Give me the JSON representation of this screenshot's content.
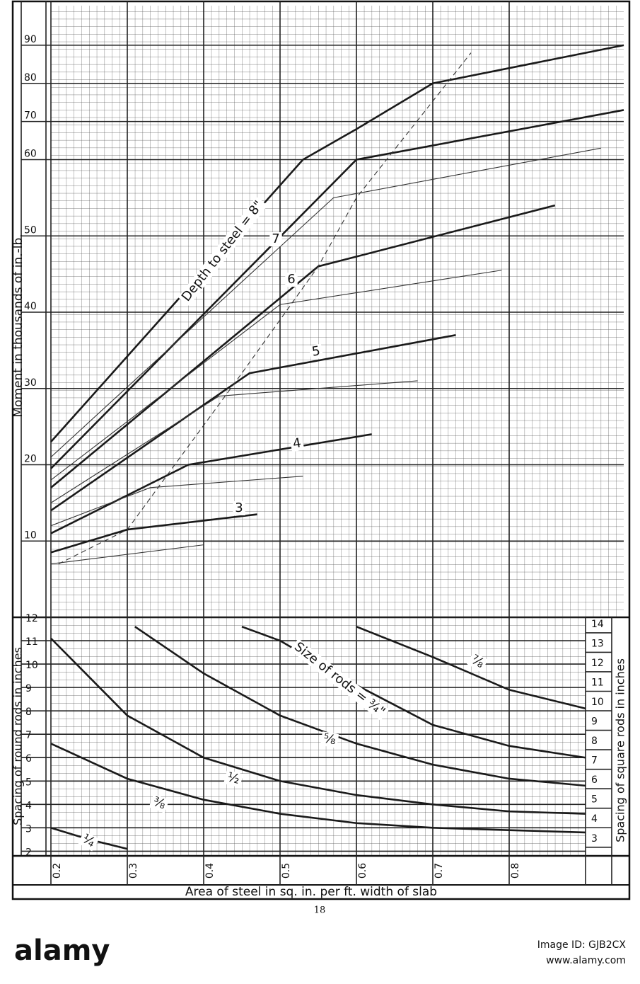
{
  "chart_data": [
    {
      "type": "line",
      "y_label": "Moment in thousands of in.-lb.",
      "xlim": [
        0.2,
        0.95
      ],
      "ylim": [
        0,
        100
      ],
      "scale_break": {
        "value": 60,
        "upper_ratio": 0.5
      },
      "yticks": [
        10,
        20,
        30,
        40,
        50,
        60,
        70,
        80,
        90
      ],
      "grid": true,
      "series": [
        {
          "name": "3",
          "color": "#1a1a1a",
          "line_style": "bold",
          "x": [
            0.2,
            0.3,
            0.47
          ],
          "values": [
            8.5,
            11.5,
            13.5
          ]
        },
        {
          "name": "4",
          "color": "#1a1a1a",
          "line_style": "bold",
          "x": [
            0.2,
            0.38,
            0.62
          ],
          "values": [
            11,
            20,
            24
          ]
        },
        {
          "name": "5",
          "color": "#1a1a1a",
          "line_style": "bold",
          "x": [
            0.2,
            0.46,
            0.73
          ],
          "values": [
            14,
            32,
            37
          ]
        },
        {
          "name": "6",
          "color": "#1a1a1a",
          "line_style": "bold",
          "x": [
            0.2,
            0.55,
            0.86
          ],
          "values": [
            17,
            46,
            54
          ]
        },
        {
          "name": "7",
          "color": "#1a1a1a",
          "line_style": "bold",
          "x": [
            0.2,
            0.6,
            0.95
          ],
          "values": [
            19.5,
            60,
            73
          ]
        },
        {
          "name": "Depth to steel = 8\"",
          "color": "#1a1a1a",
          "line_style": "bold",
          "x": [
            0.2,
            0.53,
            0.6,
            0.7,
            0.95
          ],
          "values": [
            23,
            60,
            68,
            80,
            90
          ]
        },
        {
          "color": "#333",
          "line_style": "thin",
          "x": [
            0.2,
            0.4
          ],
          "values": [
            7,
            9.5
          ]
        },
        {
          "color": "#333",
          "line_style": "thin",
          "x": [
            0.2,
            0.33,
            0.53
          ],
          "values": [
            12,
            17,
            18.5
          ]
        },
        {
          "color": "#333",
          "line_style": "thin",
          "x": [
            0.2,
            0.42,
            0.68
          ],
          "values": [
            15,
            29,
            31
          ]
        },
        {
          "color": "#333",
          "line_style": "thin",
          "x": [
            0.2,
            0.5,
            0.79
          ],
          "values": [
            18,
            41,
            45.5
          ]
        },
        {
          "color": "#333",
          "line_style": "thin",
          "x": [
            0.2,
            0.57,
            0.92
          ],
          "values": [
            21,
            55,
            63
          ]
        },
        {
          "color": "#333",
          "line_style": "dashed",
          "x": [
            0.21,
            0.3,
            0.45,
            0.55,
            0.6,
            0.75
          ],
          "values": [
            7,
            11.5,
            32,
            46,
            55,
            88
          ]
        }
      ]
    },
    {
      "type": "line",
      "x_label": "Area of steel in sq. in. per ft. width of slab",
      "y_label": "Spacing of round rods in inches",
      "y2_label": "Spacing of square rods in inches",
      "xlim": [
        0.2,
        0.95
      ],
      "xticks": [
        0.2,
        0.3,
        0.4,
        0.5,
        0.6,
        0.7,
        0.8
      ],
      "ylim": [
        1.8,
        12
      ],
      "yticks": [
        2,
        3,
        4,
        5,
        6,
        7,
        8,
        9,
        10,
        11,
        12
      ],
      "y2lim": [
        2.12,
        14.36
      ],
      "y2ticks": [
        3,
        4,
        5,
        6,
        7,
        8,
        9,
        10,
        11,
        12,
        13,
        14
      ],
      "grid": true,
      "series": [
        {
          "name": "¼",
          "color": "#1a1a1a",
          "line_style": "bold",
          "x": [
            0.2,
            0.25,
            0.3
          ],
          "values": [
            3,
            2.5,
            2.1
          ]
        },
        {
          "name": "⅜",
          "color": "#1a1a1a",
          "line_style": "bold",
          "x": [
            0.2,
            0.3,
            0.4,
            0.5,
            0.6,
            0.7,
            0.8,
            0.9
          ],
          "values": [
            6.6,
            5.1,
            4.2,
            3.6,
            3.2,
            3.0,
            2.9,
            2.8
          ]
        },
        {
          "name": "½",
          "color": "#1a1a1a",
          "line_style": "bold",
          "x": [
            0.2,
            0.3,
            0.4,
            0.5,
            0.6,
            0.7,
            0.8,
            0.9
          ],
          "values": [
            11.1,
            7.8,
            6,
            5,
            4.4,
            4,
            3.7,
            3.6
          ]
        },
        {
          "name": "⅝",
          "color": "#1a1a1a",
          "line_style": "bold",
          "x": [
            0.31,
            0.4,
            0.5,
            0.6,
            0.7,
            0.8,
            0.9
          ],
          "values": [
            11.6,
            9.6,
            7.8,
            6.6,
            5.7,
            5.1,
            4.8
          ]
        },
        {
          "name": "Size of rods = ¾\"",
          "color": "#1a1a1a",
          "line_style": "bold",
          "x": [
            0.45,
            0.5,
            0.6,
            0.7,
            0.8,
            0.9
          ],
          "values": [
            11.6,
            11,
            9.1,
            7.4,
            6.5,
            6
          ]
        },
        {
          "name": "⅞",
          "color": "#1a1a1a",
          "line_style": "bold",
          "x": [
            0.6,
            0.7,
            0.8,
            0.9
          ],
          "values": [
            11.6,
            10.3,
            8.9,
            8.1
          ]
        }
      ]
    }
  ],
  "page_number": "18",
  "footer": {
    "brand": "alamy",
    "image_id": "Image ID: GJB2CX",
    "site": "www.alamy.com"
  }
}
